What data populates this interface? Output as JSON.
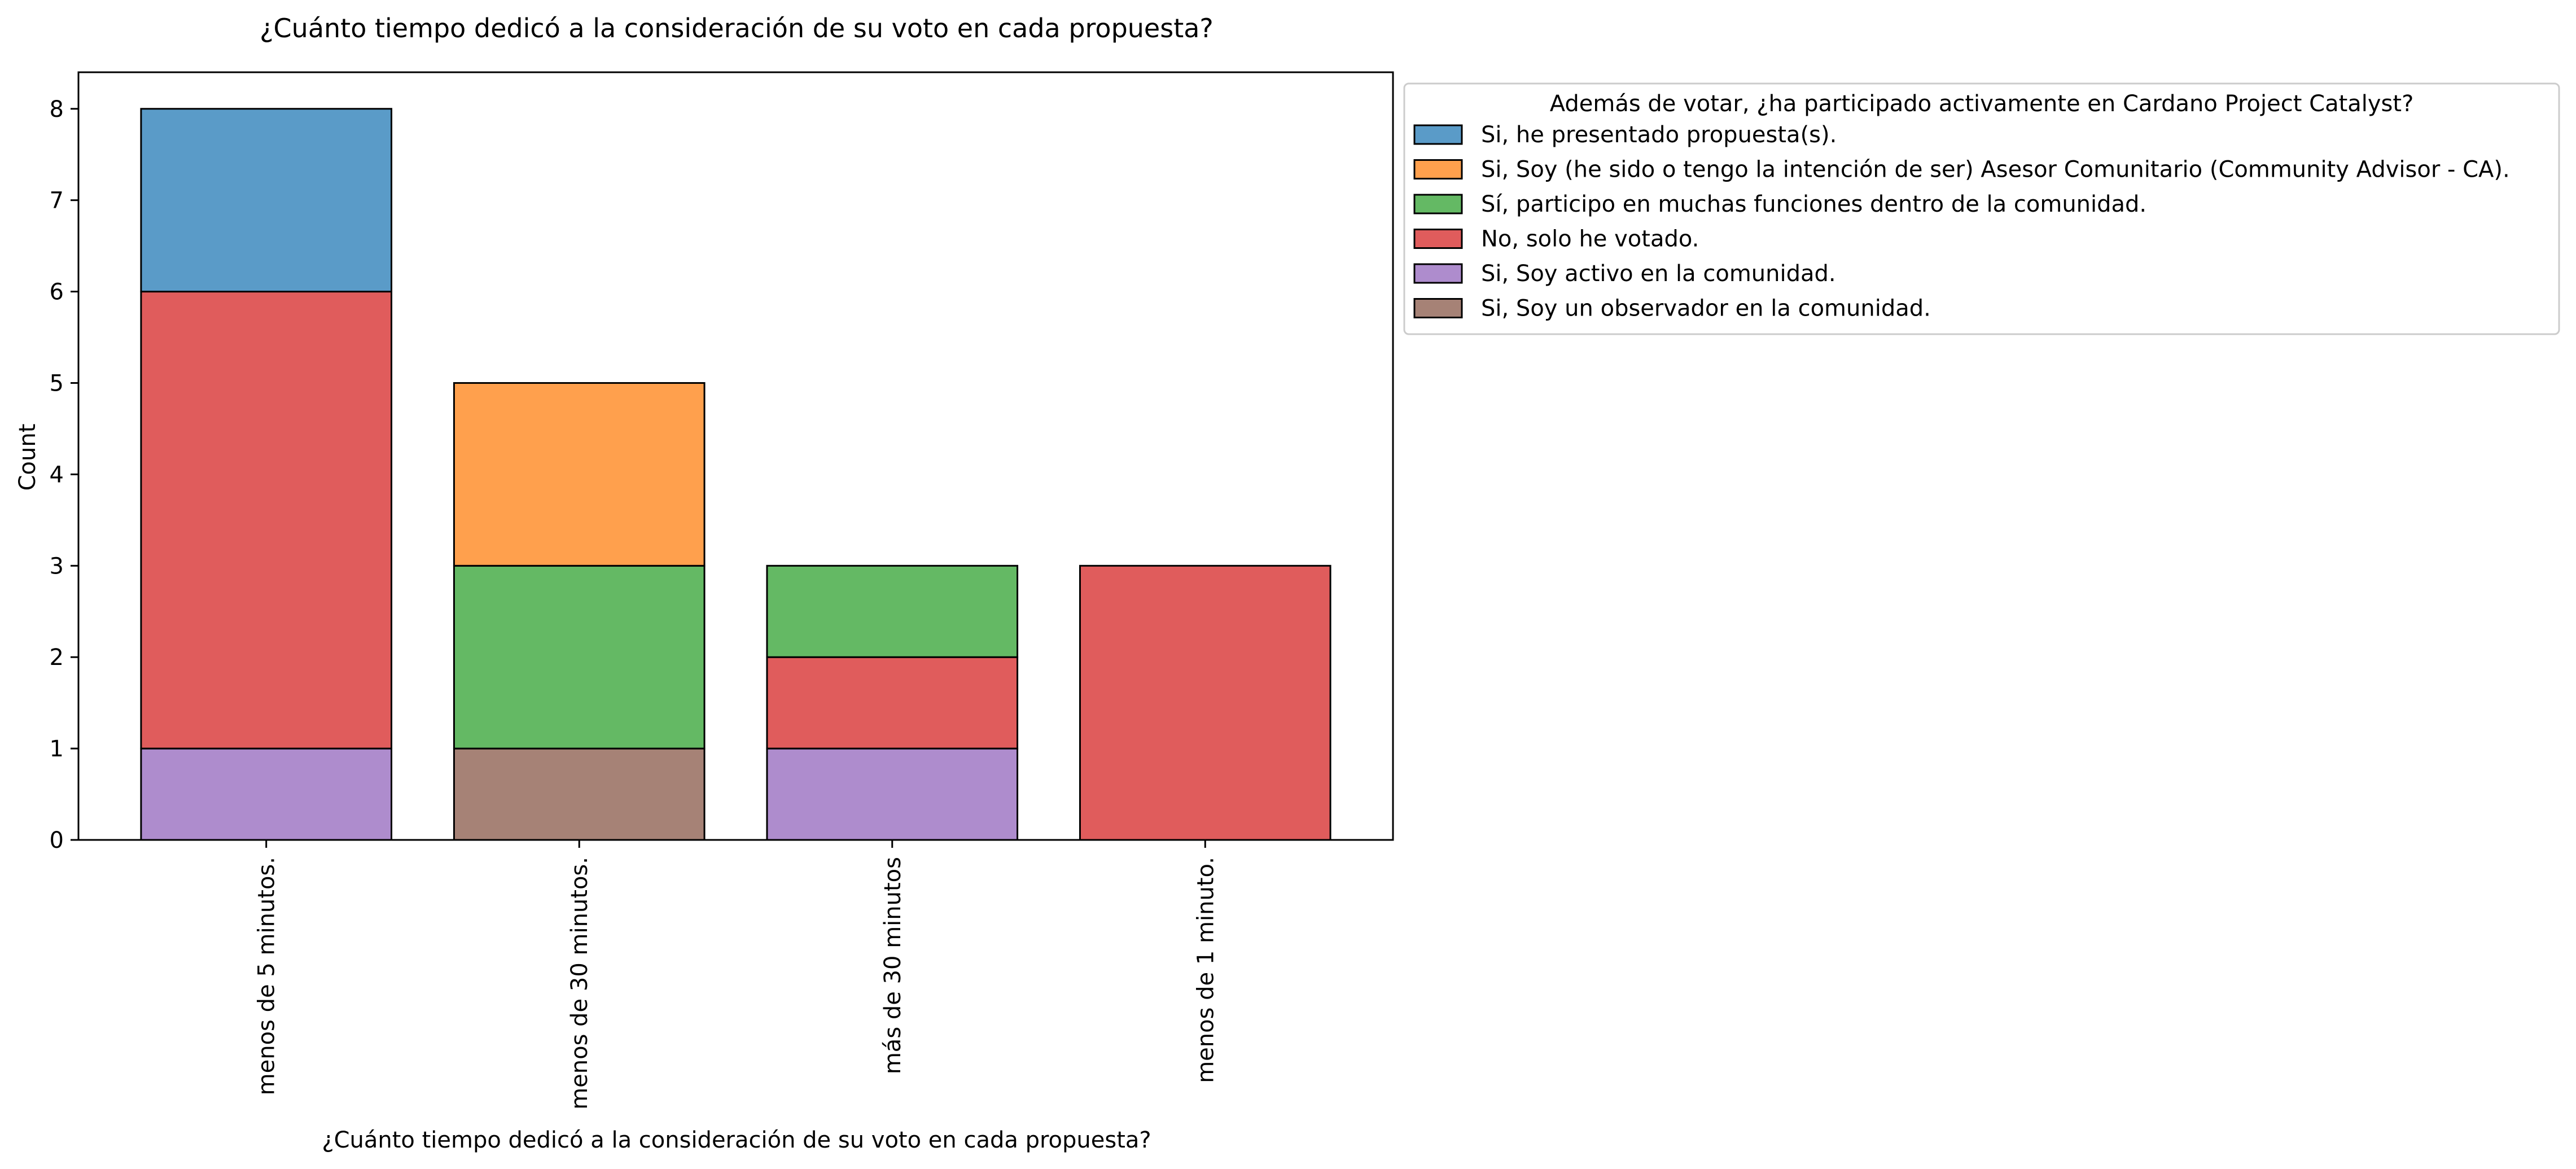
{
  "chart_data": {
    "type": "bar",
    "stacked": true,
    "title": "¿Cuánto tiempo dedicó a la consideración de su voto en cada propuesta?",
    "xlabel": "¿Cuánto tiempo dedicó a la consideración de su voto en cada propuesta?",
    "ylabel": "Count",
    "ylim": [
      0,
      8.4
    ],
    "yticks": [
      0,
      1,
      2,
      3,
      4,
      5,
      6,
      7,
      8
    ],
    "grid": false,
    "categories": [
      "menos de 5 minutos.",
      "menos de 30 minutos.",
      "más de 30 minutos",
      "menos de 1 minuto."
    ],
    "legend": {
      "title": "Además de votar, ¿ha participado activamente en Cardano Project Catalyst?",
      "placement": "outside-right-top"
    },
    "series": [
      {
        "name": "Si, he presentado propuesta(s).",
        "color": "#5a9bc8",
        "values": [
          2,
          0,
          0,
          0
        ]
      },
      {
        "name": "Si, Soy (he sido o tengo la intención de ser) Asesor Comunitario (Community Advisor - CA).",
        "color": "#ffa04d",
        "values": [
          0,
          2,
          0,
          0
        ]
      },
      {
        "name": "Sí, participo en muchas funciones dentro de la comunidad.",
        "color": "#64b964",
        "values": [
          0,
          2,
          1,
          0
        ]
      },
      {
        "name": "No, solo he votado.",
        "color": "#e05c5c",
        "values": [
          5,
          0,
          1,
          3
        ]
      },
      {
        "name": "Si, Soy activo en la comunidad.",
        "color": "#ae8ccd",
        "values": [
          1,
          0,
          1,
          0
        ]
      },
      {
        "name": "Si, Soy un observador en la comunidad.",
        "color": "#a68276",
        "values": [
          0,
          1,
          0,
          0
        ]
      }
    ]
  }
}
